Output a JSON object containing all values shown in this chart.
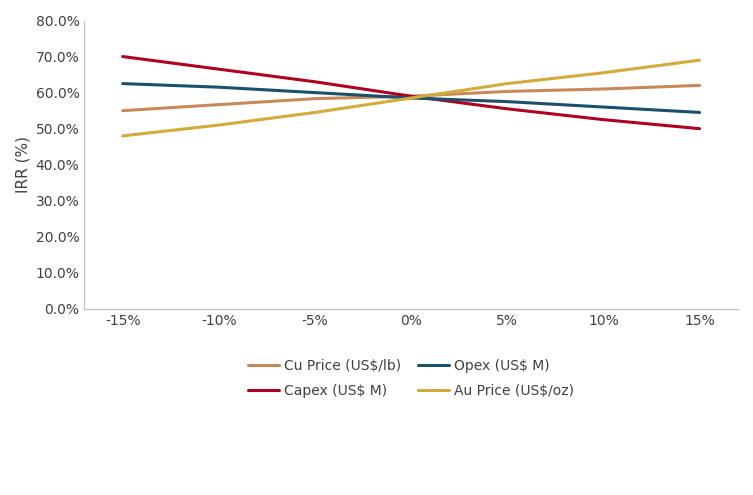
{
  "x_values": [
    -15,
    -10,
    -5,
    0,
    5,
    10,
    15
  ],
  "x_labels": [
    "-15%",
    "-10%",
    "-5%",
    "0%",
    "5%",
    "10%",
    "15%"
  ],
  "series": [
    {
      "label": "Cu Price (US$/lb)",
      "color": "#c8895a",
      "values": [
        55.0,
        56.67,
        58.33,
        59.0,
        60.33,
        61.0,
        62.0
      ]
    },
    {
      "label": "Capex (US$ M)",
      "color": "#b00020",
      "values": [
        70.0,
        66.5,
        63.0,
        59.0,
        55.5,
        52.5,
        50.0
      ]
    },
    {
      "label": "Opex (US$ M)",
      "color": "#1b4f6b",
      "values": [
        62.5,
        61.5,
        60.0,
        58.5,
        57.5,
        56.0,
        54.5
      ]
    },
    {
      "label": "Au Price (US$/oz)",
      "color": "#d4aa3a",
      "values": [
        48.0,
        51.0,
        54.5,
        58.5,
        62.5,
        65.5,
        69.0
      ]
    }
  ],
  "ylabel": "IRR (%)",
  "ylim": [
    0,
    80
  ],
  "ytick_step": 10,
  "background_color": "#ffffff",
  "line_width": 2.2,
  "tick_color": "#999999",
  "spine_color": "#bbbbbb",
  "font_color": "#404040",
  "legend_order": [
    0,
    1,
    2,
    3
  ]
}
